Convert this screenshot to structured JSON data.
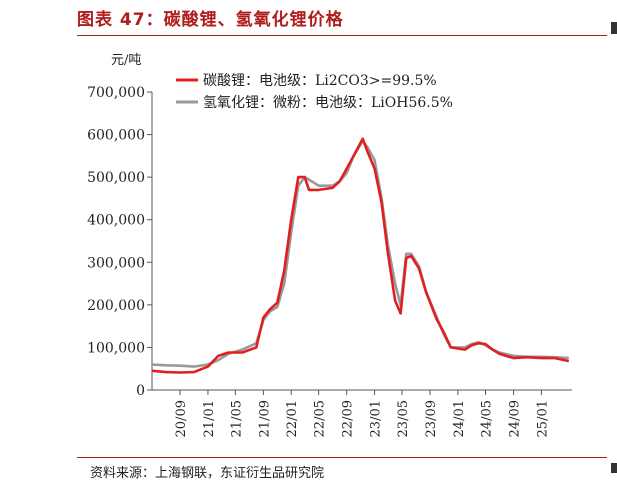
{
  "title": "图表 47：碳酸锂、氢氧化锂价格",
  "source": "资料来源：上海钢联，东证衍生品研究院",
  "colors": {
    "accent": "#b01c1c"
  },
  "chart_data": {
    "type": "line",
    "unit_label": "元/吨",
    "ylim": [
      0,
      700000
    ],
    "yticks": [
      "700,000",
      "600,000",
      "500,000",
      "400,000",
      "300,000",
      "200,000",
      "100,000",
      "0"
    ],
    "xticks": [
      "20/09",
      "21/01",
      "21/05",
      "21/09",
      "22/01",
      "22/05",
      "22/09",
      "23/01",
      "23/05",
      "23/09",
      "24/01",
      "24/05",
      "24/09",
      "25/01"
    ],
    "legend_position": "top-left",
    "series": [
      {
        "name": "碳酸锂：电池级：Li2CO3>=99.5%",
        "color": "#e02020",
        "points": [
          [
            "2020-05-01",
            45000
          ],
          [
            "2020-07-01",
            42000
          ],
          [
            "2020-09-01",
            41000
          ],
          [
            "2020-11-01",
            42000
          ],
          [
            "2021-01-01",
            55000
          ],
          [
            "2021-02-15",
            80000
          ],
          [
            "2021-04-01",
            88000
          ],
          [
            "2021-06-01",
            88000
          ],
          [
            "2021-08-01",
            100000
          ],
          [
            "2021-09-01",
            170000
          ],
          [
            "2021-10-01",
            190000
          ],
          [
            "2021-11-01",
            205000
          ],
          [
            "2021-12-01",
            280000
          ],
          [
            "2022-01-01",
            400000
          ],
          [
            "2022-02-01",
            500000
          ],
          [
            "2022-03-01",
            500000
          ],
          [
            "2022-03-20",
            470000
          ],
          [
            "2022-05-01",
            470000
          ],
          [
            "2022-07-01",
            475000
          ],
          [
            "2022-08-01",
            490000
          ],
          [
            "2022-09-01",
            520000
          ],
          [
            "2022-10-01",
            550000
          ],
          [
            "2022-11-10",
            590000
          ],
          [
            "2022-12-01",
            560000
          ],
          [
            "2023-01-01",
            520000
          ],
          [
            "2023-02-01",
            440000
          ],
          [
            "2023-03-01",
            320000
          ],
          [
            "2023-04-01",
            210000
          ],
          [
            "2023-04-25",
            180000
          ],
          [
            "2023-05-20",
            310000
          ],
          [
            "2023-06-10",
            315000
          ],
          [
            "2023-07-15",
            285000
          ],
          [
            "2023-08-15",
            230000
          ],
          [
            "2023-10-01",
            165000
          ],
          [
            "2023-11-01",
            135000
          ],
          [
            "2023-12-01",
            100000
          ],
          [
            "2024-02-01",
            95000
          ],
          [
            "2024-03-01",
            105000
          ],
          [
            "2024-04-01",
            110000
          ],
          [
            "2024-05-01",
            108000
          ],
          [
            "2024-06-01",
            95000
          ],
          [
            "2024-07-01",
            85000
          ],
          [
            "2024-09-01",
            75000
          ],
          [
            "2024-11-01",
            77000
          ],
          [
            "2025-01-01",
            75000
          ],
          [
            "2025-03-01",
            75000
          ],
          [
            "2025-05-01",
            68000
          ]
        ]
      },
      {
        "name": "氢氧化锂：微粉：电池级：LiOH56.5%",
        "color": "#999999",
        "points": [
          [
            "2020-05-01",
            60000
          ],
          [
            "2020-07-01",
            58000
          ],
          [
            "2020-09-01",
            57000
          ],
          [
            "2020-11-01",
            55000
          ],
          [
            "2021-01-01",
            60000
          ],
          [
            "2021-02-15",
            70000
          ],
          [
            "2021-04-01",
            85000
          ],
          [
            "2021-06-01",
            95000
          ],
          [
            "2021-08-01",
            110000
          ],
          [
            "2021-09-01",
            165000
          ],
          [
            "2021-10-01",
            185000
          ],
          [
            "2021-11-01",
            195000
          ],
          [
            "2021-12-01",
            250000
          ],
          [
            "2022-01-01",
            370000
          ],
          [
            "2022-02-01",
            480000
          ],
          [
            "2022-03-01",
            500000
          ],
          [
            "2022-04-01",
            490000
          ],
          [
            "2022-05-01",
            480000
          ],
          [
            "2022-07-01",
            480000
          ],
          [
            "2022-08-01",
            490000
          ],
          [
            "2022-09-01",
            510000
          ],
          [
            "2022-10-01",
            550000
          ],
          [
            "2022-11-10",
            585000
          ],
          [
            "2022-12-01",
            570000
          ],
          [
            "2023-01-01",
            540000
          ],
          [
            "2023-02-01",
            450000
          ],
          [
            "2023-03-01",
            340000
          ],
          [
            "2023-04-01",
            250000
          ],
          [
            "2023-04-25",
            200000
          ],
          [
            "2023-05-20",
            320000
          ],
          [
            "2023-06-10",
            320000
          ],
          [
            "2023-07-15",
            290000
          ],
          [
            "2023-08-15",
            230000
          ],
          [
            "2023-10-01",
            170000
          ],
          [
            "2023-11-01",
            130000
          ],
          [
            "2023-12-01",
            100000
          ],
          [
            "2024-02-01",
            100000
          ],
          [
            "2024-03-01",
            108000
          ],
          [
            "2024-04-01",
            112000
          ],
          [
            "2024-05-01",
            105000
          ],
          [
            "2024-06-01",
            95000
          ],
          [
            "2024-07-01",
            88000
          ],
          [
            "2024-09-01",
            80000
          ],
          [
            "2024-11-01",
            78000
          ],
          [
            "2025-01-01",
            78000
          ],
          [
            "2025-03-01",
            77000
          ],
          [
            "2025-05-01",
            75000
          ]
        ]
      }
    ]
  }
}
